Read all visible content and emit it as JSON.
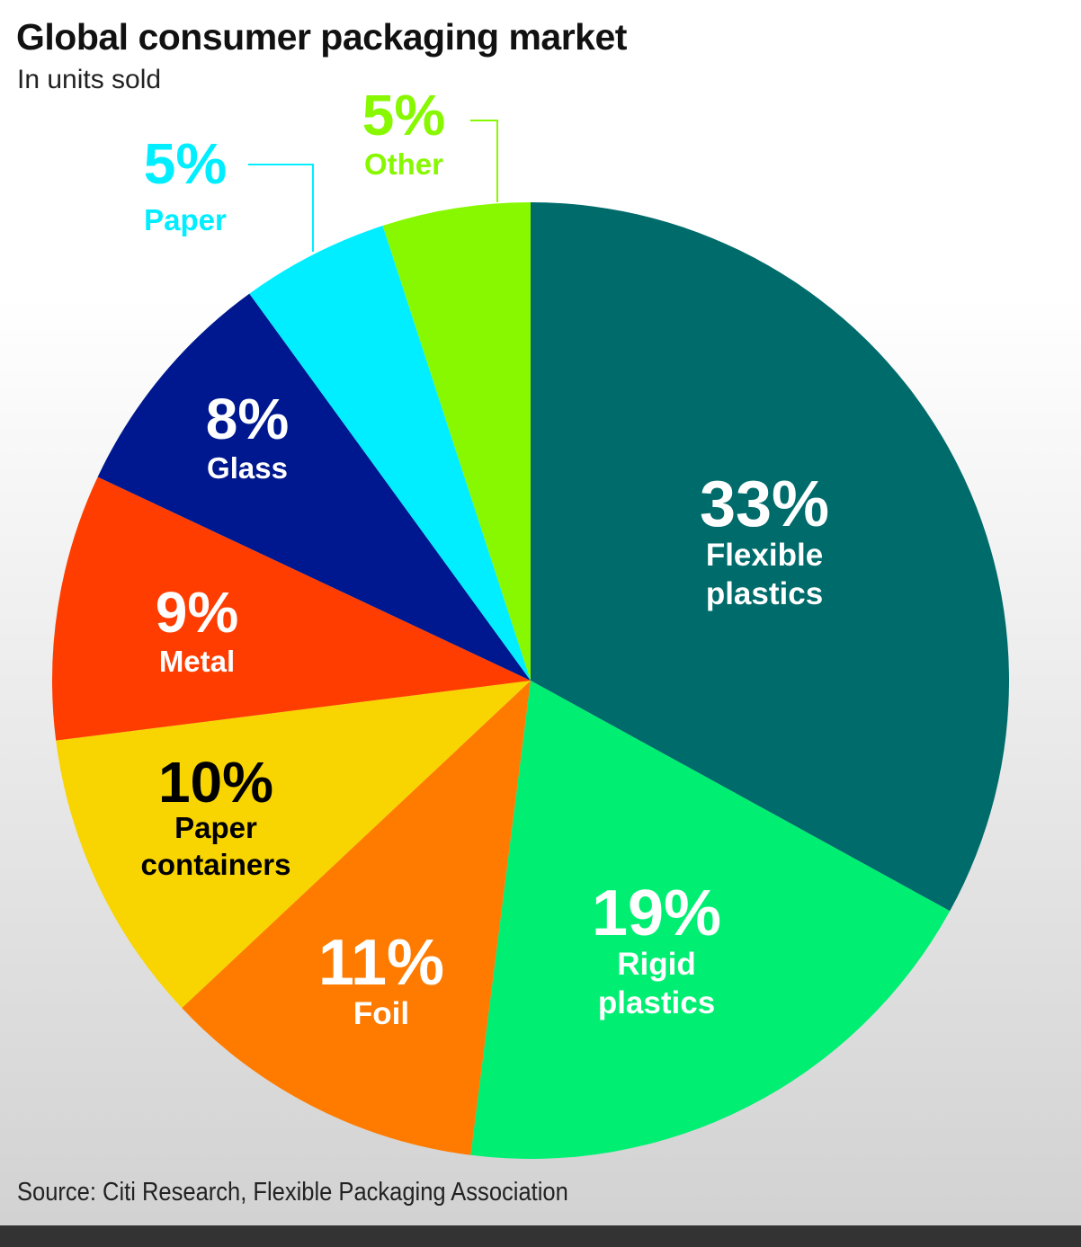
{
  "header": {
    "title": "Global consumer packaging market",
    "subtitle": "In units sold"
  },
  "footer": {
    "source": "Source: Citi Research, Flexible Packaging Association"
  },
  "chart_data": {
    "type": "pie",
    "title": "Global consumer packaging market",
    "subtitle": "In units sold",
    "unit": "%",
    "slices": [
      {
        "label": "Flexible plastics",
        "value": 33,
        "color": "#006b6b",
        "label_color": "#ffffff"
      },
      {
        "label": "Rigid plastics",
        "value": 19,
        "color": "#00ef72",
        "label_color": "#ffffff"
      },
      {
        "label": "Foil",
        "value": 11,
        "color": "#ff7b00",
        "label_color": "#ffffff"
      },
      {
        "label": "Paper containers",
        "value": 10,
        "color": "#f8d400",
        "label_color": "#000000"
      },
      {
        "label": "Metal",
        "value": 9,
        "color": "#ff3d00",
        "label_color": "#ffffff"
      },
      {
        "label": "Glass",
        "value": 8,
        "color": "#00188f",
        "label_color": "#ffffff"
      },
      {
        "label": "Paper",
        "value": 5,
        "color": "#00eeff",
        "label_color": "#00eeff",
        "callout": true
      },
      {
        "label": "Other",
        "value": 5,
        "color": "#88f800",
        "label_color": "#88f800",
        "callout": true
      }
    ]
  }
}
